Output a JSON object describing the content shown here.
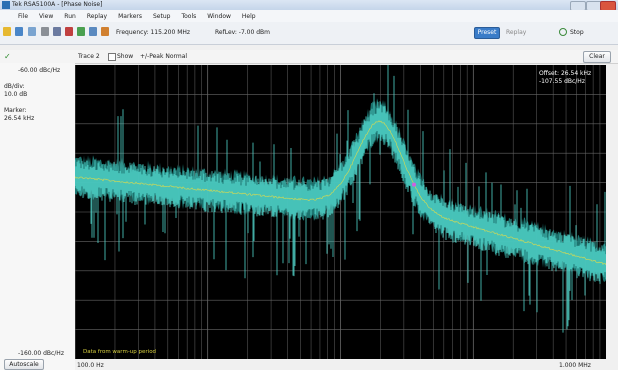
{
  "title_bar": {
    "title": "Tek RSA5100A - [Phase Noise]"
  },
  "menu": [
    "File",
    "View",
    "Run",
    "Replay",
    "Markers",
    "Setup",
    "Tools",
    "Window",
    "Help"
  ],
  "toolbar": {
    "frequency": "Frequency: 115.200 MHz",
    "ref_level": "RefLev: -7.00 dBm",
    "preset": "Preset",
    "replay": "Replay",
    "stop": "Stop"
  },
  "trace_bar": {
    "trace": "Trace 2",
    "show": "Show",
    "detection": "+/-Peak Normal",
    "clear": "Clear"
  },
  "left_panel": {
    "top": "-60.00 dBc/Hz",
    "dbdiv_label": "dB/div:",
    "dbdiv": "10.0 dB",
    "marker_label": "Marker:",
    "marker": "26.54 kHz",
    "bottom": "-160.00 dBc/Hz",
    "autoscale": "Autoscale"
  },
  "plot": {
    "readout": [
      "Offset: 26.54 kHz",
      "-107.55 dBc/Hz"
    ],
    "note": "Data from warm-up period",
    "x_start": "100.0 Hz",
    "x_stop": "1.000 MHz"
  }
}
